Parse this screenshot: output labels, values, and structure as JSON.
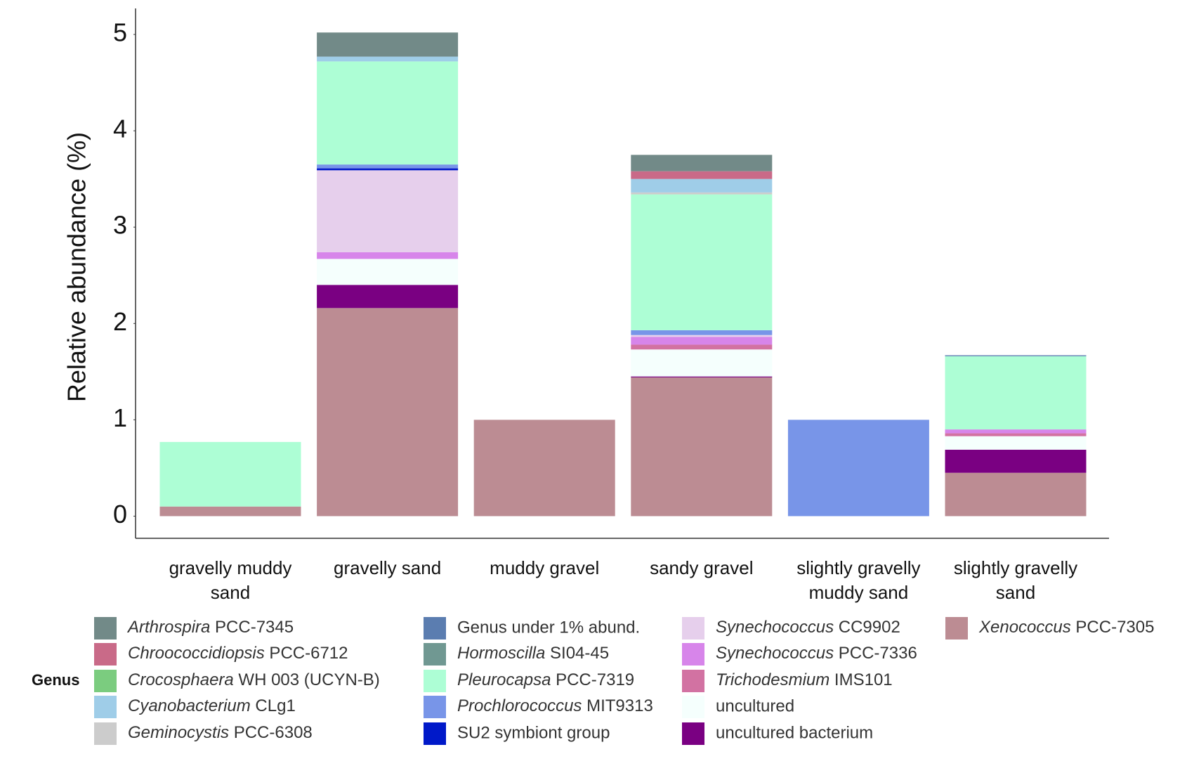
{
  "chart_data": {
    "type": "stacked_bar",
    "y_label": "Relative abundance (%)",
    "legend_title": "Genus",
    "categories": [
      "gravelly muddy sand",
      "gravelly sand",
      "muddy gravel",
      "sandy gravel",
      "slightly gravelly muddy sand",
      "slightly gravelly sand"
    ],
    "ylim": [
      -0.23,
      5.27
    ],
    "yticks": [
      0,
      1,
      2,
      3,
      4,
      5
    ],
    "grid": false,
    "series": [
      {
        "name": "Arthrospira PCC-7345",
        "italic_genus": true,
        "color": "#728a88",
        "values": [
          0,
          0.25,
          0,
          0.17,
          0,
          0
        ]
      },
      {
        "name": "Chroococcidiopsis PCC-6712",
        "italic_genus": true,
        "color": "#c96a88",
        "values": [
          0,
          0,
          0,
          0.08,
          0,
          0
        ]
      },
      {
        "name": "Crocosphaera WH 003 (UCYN-B)",
        "italic_genus": true,
        "color": "#7bcc7f",
        "values": [
          0,
          0,
          0,
          0,
          0,
          0
        ]
      },
      {
        "name": "Cyanobacterium CLg1",
        "italic_genus": true,
        "color": "#9fcde8",
        "values": [
          0,
          0.05,
          0,
          0.14,
          0,
          0
        ]
      },
      {
        "name": "Geminocystis PCC-6308",
        "italic_genus": true,
        "color": "#cccccc",
        "values": [
          0,
          0,
          0,
          0.02,
          0,
          0
        ]
      },
      {
        "name": "Genus under 1% abund.",
        "italic_genus": false,
        "color": "#5b7db0",
        "values": [
          0,
          0,
          0,
          0,
          0,
          0.01
        ]
      },
      {
        "name": "Hormoscilla SI04-45",
        "italic_genus": true,
        "color": "#709892",
        "values": [
          0,
          0,
          0,
          0,
          0,
          0
        ]
      },
      {
        "name": "Pleurocapsa PCC-7319",
        "italic_genus": true,
        "color": "#adfed5",
        "values": [
          0.67,
          1.07,
          0,
          1.41,
          0,
          0.76
        ]
      },
      {
        "name": "Prochlorococcus MIT9313",
        "italic_genus": true,
        "color": "#7895e8",
        "values": [
          0,
          0.04,
          0,
          0.05,
          1.0,
          0
        ]
      },
      {
        "name": "SU2 symbiont group",
        "italic_genus": false,
        "color": "#0019c9",
        "values": [
          0,
          0.02,
          0,
          0,
          0,
          0
        ]
      },
      {
        "name": "Synechococcus CC9902",
        "italic_genus": true,
        "color": "#e6cfec",
        "values": [
          0,
          0.85,
          0,
          0.02,
          0,
          0
        ]
      },
      {
        "name": "Synechococcus PCC-7336",
        "italic_genus": true,
        "color": "#d785ea",
        "values": [
          0,
          0.07,
          0,
          0.08,
          0,
          0.04
        ]
      },
      {
        "name": "Trichodesmium IMS101",
        "italic_genus": true,
        "color": "#d272a2",
        "values": [
          0,
          0,
          0,
          0.05,
          0,
          0.03
        ]
      },
      {
        "name": "uncultured",
        "italic_genus": false,
        "color": "#f5fffd",
        "values": [
          0,
          0.27,
          0,
          0.28,
          0,
          0.14
        ]
      },
      {
        "name": "uncultured bacterium",
        "italic_genus": false,
        "color": "#7a0082",
        "values": [
          0,
          0.24,
          0,
          0.01,
          0,
          0.24
        ]
      },
      {
        "name": "Xenococcus PCC-7305",
        "italic_genus": true,
        "color": "#bc8c93",
        "values": [
          0.1,
          2.16,
          1.0,
          1.44,
          0,
          0.45
        ]
      }
    ]
  }
}
